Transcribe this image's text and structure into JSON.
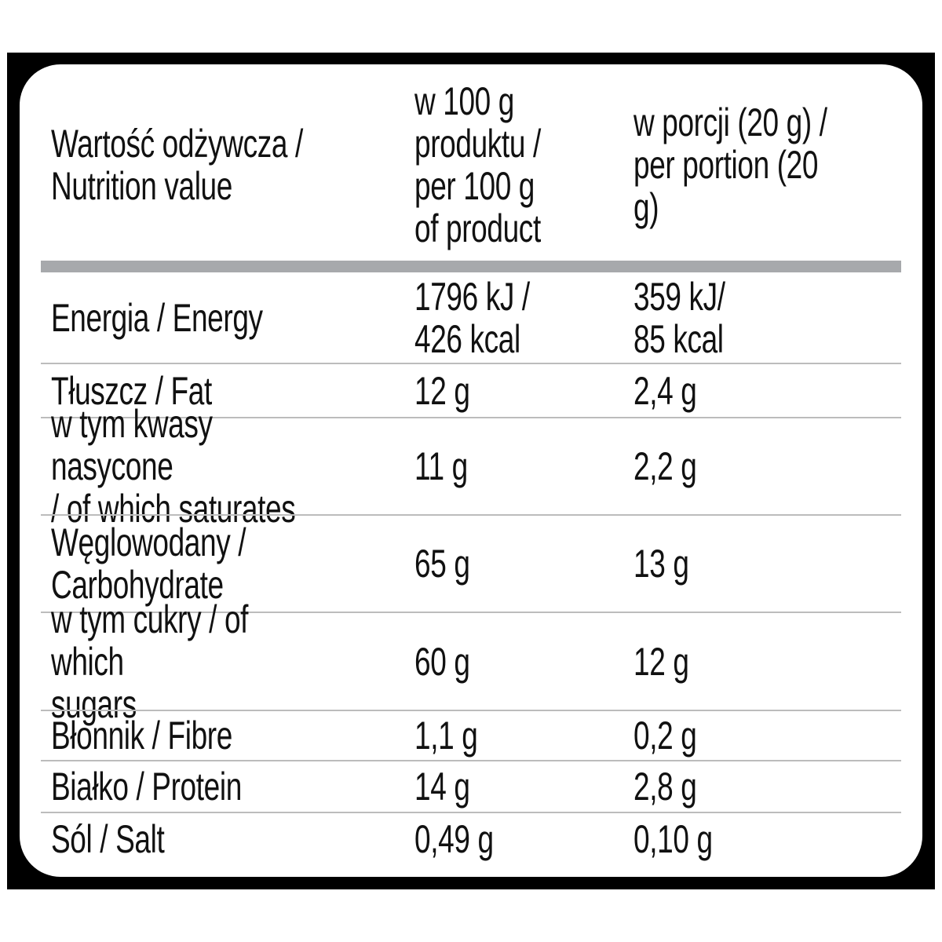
{
  "header": {
    "col1": "Wartość odżywcza /\nNutrition value",
    "col2": "w 100 g\nproduktu /\nper 100 g\nof product",
    "col3": "w porcji (20 g) /\nper portion (20 g)"
  },
  "rows": [
    {
      "label": "Energia / Energy",
      "per100": "1796 kJ /\n426 kcal",
      "portion": "359 kJ/\n85 kcal"
    },
    {
      "label": "Tłuszcz / Fat",
      "per100": "12 g",
      "portion": "2,4 g"
    },
    {
      "label": "w tym kwasy nasycone\n/ of which saturates",
      "per100": "11 g",
      "portion": "2,2 g"
    },
    {
      "label": "Węglowodany /\nCarbohydrate",
      "per100": "65 g",
      "portion": "13 g"
    },
    {
      "label": "w tym cukry / of which\nsugars",
      "per100": "60 g",
      "portion": "12 g"
    },
    {
      "label": "Błonnik / Fibre",
      "per100": "1,1 g",
      "portion": "0,2 g"
    },
    {
      "label": "Białko / Protein",
      "per100": "14 g",
      "portion": "2,8 g"
    },
    {
      "label": "Sól / Salt",
      "per100": "0,49 g",
      "portion": "0,10 g"
    }
  ]
}
